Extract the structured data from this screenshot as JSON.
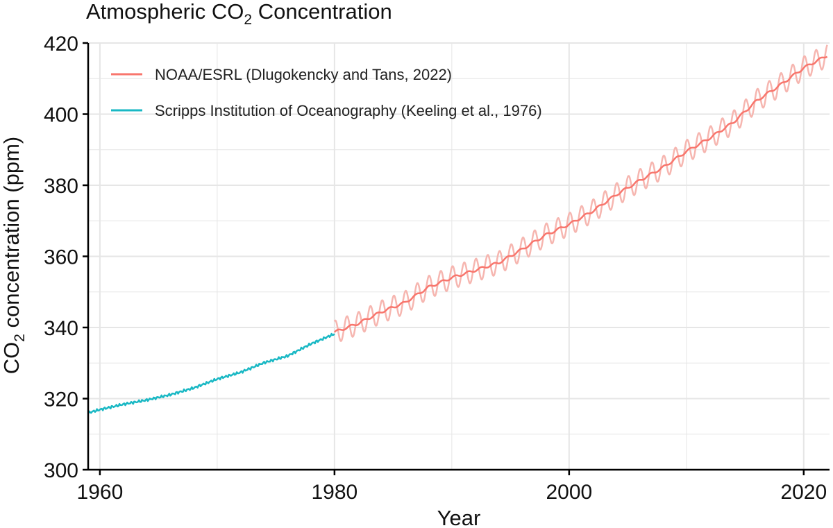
{
  "chart_data": {
    "type": "line",
    "title_main": "Atmospheric CO",
    "title_sub": "2",
    "title_rest": " Concentration",
    "xlabel": "Year",
    "ylabel_main": "CO",
    "ylabel_sub": "2",
    "ylabel_rest": " concentration (ppm)",
    "xlim": [
      1959,
      2022.2
    ],
    "ylim": [
      300,
      420
    ],
    "x_ticks": [
      1960,
      1980,
      2000,
      2020
    ],
    "x_minor_ticks": [
      1970,
      1990,
      2010
    ],
    "y_ticks": [
      300,
      320,
      340,
      360,
      380,
      400,
      420
    ],
    "y_minor_ticks": [
      310,
      330,
      350,
      370,
      390,
      410
    ],
    "grid": true,
    "legend_position": "top-left",
    "colors": {
      "noaa": "#f8766d",
      "noaa_monthly": "#f6b6b0",
      "scripps": "#19b8c4",
      "grid": "#e6e6e6",
      "axis": "#000000"
    },
    "series": [
      {
        "name": "NOAA/ESRL (Dlugokencky and Tans, 2022)",
        "key": "noaa",
        "x": [
          1980,
          1982,
          1984,
          1986,
          1988,
          1990,
          1992,
          1994,
          1996,
          1998,
          2000,
          2002,
          2004,
          2006,
          2008,
          2010,
          2012,
          2014,
          2016,
          2018,
          2020,
          2022
        ],
        "y": [
          338.7,
          341.1,
          344.4,
          347.0,
          351.3,
          354.0,
          356.1,
          358.2,
          362.0,
          366.0,
          369.0,
          372.7,
          377.3,
          381.3,
          385.0,
          389.5,
          393.3,
          397.7,
          403.8,
          408.2,
          413.0,
          416.5
        ],
        "monthly_amplitude": 3.2
      },
      {
        "name": "Scripps Institution of Oceanography (Keeling et al., 1976)",
        "key": "scripps",
        "x": [
          1959,
          1960,
          1962,
          1964,
          1966,
          1968,
          1970,
          1972,
          1974,
          1976,
          1978,
          1980
        ],
        "y": [
          316.0,
          316.9,
          318.4,
          319.6,
          321.1,
          323.0,
          325.5,
          327.4,
          330.1,
          332.0,
          335.4,
          338.2
        ]
      }
    ]
  }
}
